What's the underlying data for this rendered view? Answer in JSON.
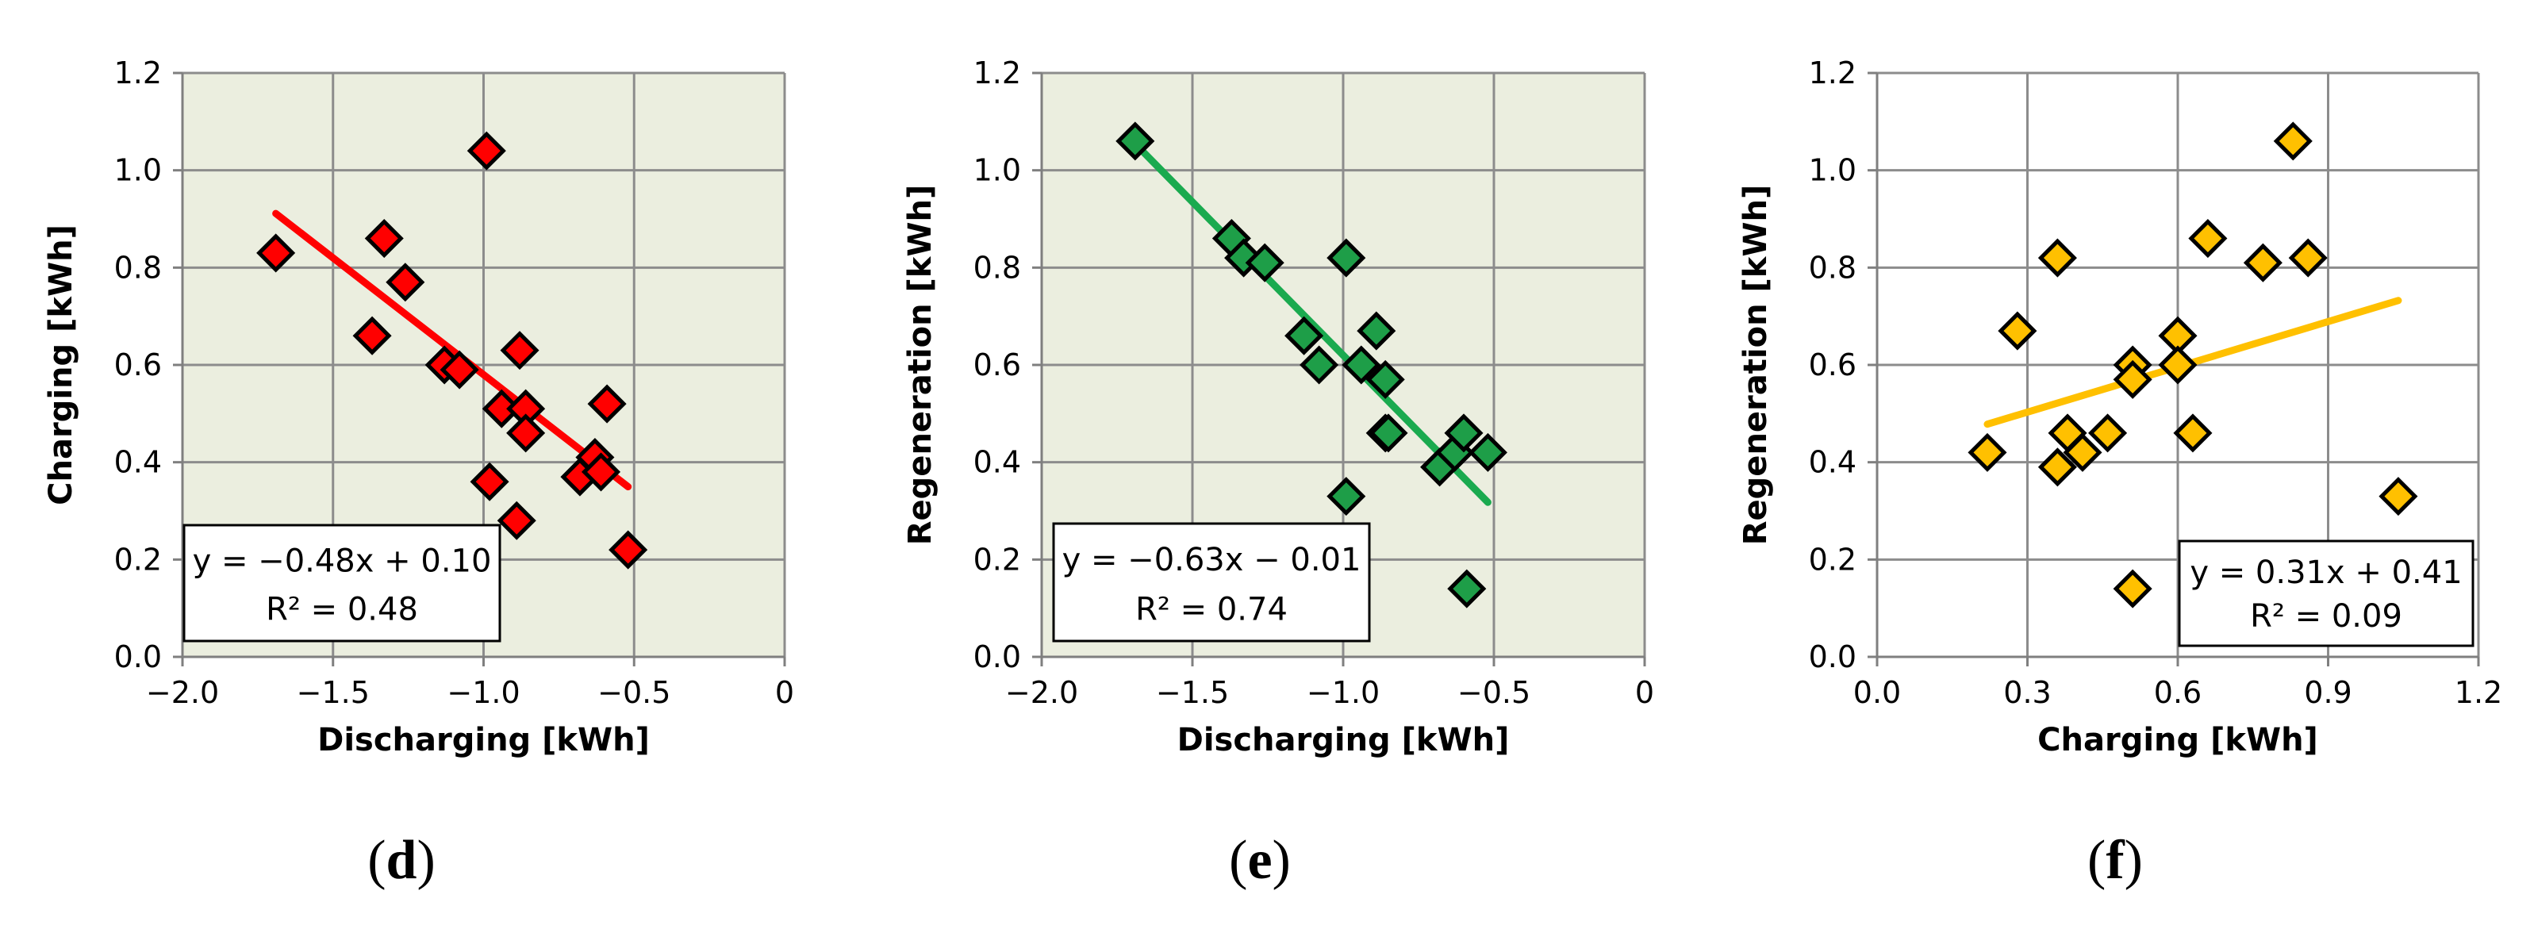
{
  "chart_data": [
    {
      "type": "scatter",
      "panel_label": "d",
      "xlabel": "Discharging [kWh]",
      "ylabel": "Charging [kWh]",
      "xlim": [
        -2.0,
        0
      ],
      "ylim": [
        0.0,
        1.2
      ],
      "xticks": [
        -2.0,
        -1.5,
        -1.0,
        -0.5,
        0
      ],
      "xtick_labels": [
        "−2.0",
        "−1.5",
        "−1.0",
        "−0.5",
        "0"
      ],
      "yticks": [
        0.0,
        0.2,
        0.4,
        0.6,
        0.8,
        1.0,
        1.2
      ],
      "ytick_labels": [
        "0.0",
        "0.2",
        "0.4",
        "0.6",
        "0.8",
        "1.0",
        "1.2"
      ],
      "grid": true,
      "background": "#ebeedf",
      "marker_color": "#ff0000",
      "line_color": "#ff0000",
      "points": [
        [
          -1.69,
          0.83
        ],
        [
          -1.33,
          0.86
        ],
        [
          -1.37,
          0.66
        ],
        [
          -1.26,
          0.77
        ],
        [
          -1.13,
          0.6
        ],
        [
          -1.08,
          0.59
        ],
        [
          -0.99,
          1.04
        ],
        [
          -0.98,
          0.36
        ],
        [
          -0.94,
          0.51
        ],
        [
          -0.88,
          0.63
        ],
        [
          -0.86,
          0.51
        ],
        [
          -0.86,
          0.46
        ],
        [
          -0.89,
          0.28
        ],
        [
          -0.68,
          0.37
        ],
        [
          -0.63,
          0.41
        ],
        [
          -0.61,
          0.38
        ],
        [
          -0.59,
          0.52
        ],
        [
          -0.52,
          0.22
        ]
      ],
      "trendline": {
        "slope": -0.48,
        "intercept": 0.1,
        "x_range": [
          -1.69,
          -0.52
        ]
      },
      "equation": "y = −0.48x + 0.10",
      "r2": "R² = 0.48",
      "annotation_position": "bottom-left"
    },
    {
      "type": "scatter",
      "panel_label": "e",
      "xlabel": "Discharging [kWh]",
      "ylabel": "Regeneration [kWh]",
      "xlim": [
        -2.0,
        0
      ],
      "ylim": [
        0.0,
        1.2
      ],
      "xticks": [
        -2.0,
        -1.5,
        -1.0,
        -0.5,
        0
      ],
      "xtick_labels": [
        "−2.0",
        "−1.5",
        "−1.0",
        "−0.5",
        "0"
      ],
      "yticks": [
        0.0,
        0.2,
        0.4,
        0.6,
        0.8,
        1.0,
        1.2
      ],
      "ytick_labels": [
        "0.0",
        "0.2",
        "0.4",
        "0.6",
        "0.8",
        "1.0",
        "1.2"
      ],
      "grid": true,
      "background": "#ebeedf",
      "marker_color": "#1e9e48",
      "line_color": "#1aaa4f",
      "points": [
        [
          -1.69,
          1.06
        ],
        [
          -1.37,
          0.86
        ],
        [
          -1.33,
          0.82
        ],
        [
          -1.26,
          0.81
        ],
        [
          -1.13,
          0.66
        ],
        [
          -1.08,
          0.6
        ],
        [
          -0.99,
          0.82
        ],
        [
          -0.99,
          0.33
        ],
        [
          -0.94,
          0.6
        ],
        [
          -0.89,
          0.67
        ],
        [
          -0.86,
          0.57
        ],
        [
          -0.86,
          0.46
        ],
        [
          -0.85,
          0.46
        ],
        [
          -0.68,
          0.39
        ],
        [
          -0.63,
          0.42
        ],
        [
          -0.6,
          0.46
        ],
        [
          -0.59,
          0.14
        ],
        [
          -0.52,
          0.42
        ]
      ],
      "trendline": {
        "slope": -0.63,
        "intercept": -0.01,
        "x_range": [
          -1.69,
          -0.52
        ]
      },
      "equation": "y = −0.63x − 0.01",
      "r2": "R² = 0.74",
      "annotation_position": "bottom-left"
    },
    {
      "type": "scatter",
      "panel_label": "f",
      "xlabel": "Charging [kWh]",
      "ylabel": "Regeneration [kWh]",
      "xlim": [
        0.0,
        1.2
      ],
      "ylim": [
        0.0,
        1.2
      ],
      "xticks": [
        0.0,
        0.3,
        0.6,
        0.9,
        1.2
      ],
      "xtick_labels": [
        "0.0",
        "0.3",
        "0.6",
        "0.9",
        "1.2"
      ],
      "yticks": [
        0.0,
        0.2,
        0.4,
        0.6,
        0.8,
        1.0,
        1.2
      ],
      "ytick_labels": [
        "0.0",
        "0.2",
        "0.4",
        "0.6",
        "0.8",
        "1.0",
        "1.2"
      ],
      "grid": true,
      "background": "#ffffff",
      "marker_color": "#ffc000",
      "line_color": "#ffc000",
      "points": [
        [
          0.22,
          0.42
        ],
        [
          0.28,
          0.67
        ],
        [
          0.36,
          0.82
        ],
        [
          0.36,
          0.39
        ],
        [
          0.38,
          0.46
        ],
        [
          0.41,
          0.42
        ],
        [
          0.46,
          0.46
        ],
        [
          0.51,
          0.6
        ],
        [
          0.51,
          0.57
        ],
        [
          0.51,
          0.14
        ],
        [
          0.6,
          0.66
        ],
        [
          0.6,
          0.6
        ],
        [
          0.63,
          0.46
        ],
        [
          0.66,
          0.86
        ],
        [
          0.77,
          0.81
        ],
        [
          0.83,
          1.06
        ],
        [
          0.86,
          0.82
        ],
        [
          1.04,
          0.33
        ]
      ],
      "trendline": {
        "slope": 0.31,
        "intercept": 0.41,
        "x_range": [
          0.22,
          1.04
        ]
      },
      "equation": "y = 0.31x + 0.41",
      "r2": "R² = 0.09",
      "annotation_position": "bottom-right"
    }
  ]
}
